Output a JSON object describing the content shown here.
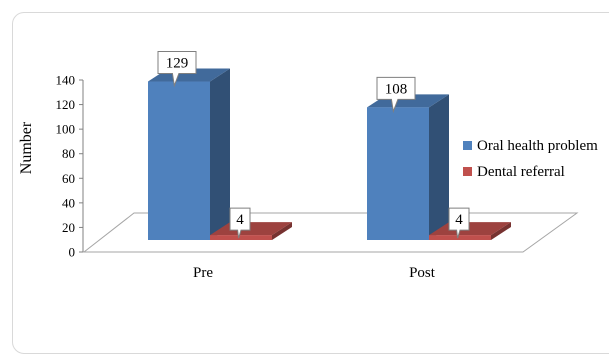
{
  "chart_data": {
    "type": "bar",
    "title": "",
    "xlabel": "",
    "ylabel": "Number",
    "ylim": [
      0,
      140
    ],
    "yticks": [
      0,
      20,
      40,
      60,
      80,
      100,
      120,
      140
    ],
    "categories": [
      "Pre",
      "Post"
    ],
    "series": [
      {
        "name": "Oral health problem",
        "values": [
          129,
          108
        ],
        "color": "#4f81bd"
      },
      {
        "name": "Dental referral",
        "values": [
          4,
          4
        ],
        "color": "#c0504d"
      }
    ],
    "legend_position": "right",
    "grid": false,
    "style": "3d-column-with-callout-labels"
  }
}
